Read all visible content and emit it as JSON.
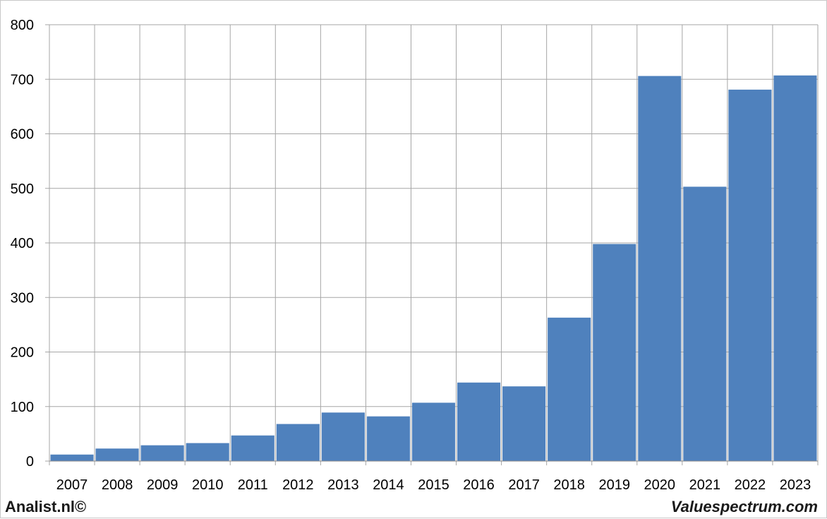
{
  "chart_data": {
    "type": "bar",
    "categories": [
      "2007",
      "2008",
      "2009",
      "2010",
      "2011",
      "2012",
      "2013",
      "2014",
      "2015",
      "2016",
      "2017",
      "2018",
      "2019",
      "2020",
      "2021",
      "2022",
      "2023"
    ],
    "values": [
      12,
      23,
      29,
      33,
      47,
      68,
      89,
      82,
      107,
      144,
      137,
      263,
      398,
      706,
      503,
      681,
      707
    ],
    "ylim": [
      0,
      800
    ],
    "yticks": [
      0,
      100,
      200,
      300,
      400,
      500,
      600,
      700,
      800
    ],
    "grid": true,
    "bar_color": "#4f81bd",
    "grid_color": "#a6a6a6"
  },
  "footer": {
    "left": "Analist.nl©",
    "right": "Valuespectrum.com"
  }
}
